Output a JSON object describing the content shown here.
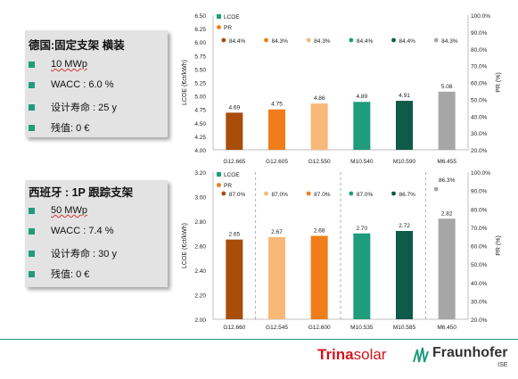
{
  "panels": [
    {
      "title": "德国:固定支架 横装",
      "bullets": [
        "10 MWp",
        "WACC : 6.0 %",
        "设计寿命 : 25 y",
        "残值: 0 €"
      ]
    },
    {
      "title": "西班牙 : 1P 跟踪支架",
      "bullets": [
        "50 MWp",
        "WACC : 7.4 %",
        "设计寿命 : 30 y",
        "残值: 0 €"
      ]
    }
  ],
  "chart_data": [
    {
      "type": "bar",
      "categories": [
        "G12.665",
        "G12.605",
        "G12.550",
        "M10.540",
        "M10.590",
        "M6.455"
      ],
      "series": [
        {
          "name": "LCOE",
          "values": [
            4.69,
            4.75,
            4.86,
            4.89,
            4.91,
            5.08
          ],
          "labels": [
            "4.69",
            "4.75",
            "4.86",
            "4.89",
            "4.91",
            "5.08"
          ]
        },
        {
          "name": "PR",
          "values": [
            84.4,
            84.3,
            84.3,
            84.4,
            84.4,
            84.3
          ],
          "labels": [
            "84.4%",
            "84.3%",
            "84.3%",
            "84.4%",
            "84.4%",
            "84.3%"
          ]
        }
      ],
      "bar_colors": [
        "#a84d0a",
        "#f07c1a",
        "#f8b878",
        "#1e9c7c",
        "#0f5a48",
        "#a6a6a6"
      ],
      "ylabel": "LCOE (€ct/kWh)",
      "y2label": "PR (%)",
      "ylim": [
        4.0,
        6.5
      ],
      "yticks": [
        "4.00",
        "4.50",
        "5.00",
        "5.50",
        "6.00",
        "6.50"
      ],
      "y2lim": [
        20,
        100
      ],
      "y2ticks": [
        "20.0%",
        "30.0%",
        "40.0%",
        "50.0%",
        "60.0%",
        "70.0%",
        "80.0%",
        "90.0%",
        "100.0%"
      ],
      "ytick_labels": [
        "4.00",
        "4.25",
        "4.50",
        "4.75",
        "5.00",
        "5.25",
        "5.50",
        "5.75",
        "6.00",
        "6.25",
        "6.50"
      ],
      "group_dividers": false,
      "legend": "top-left"
    },
    {
      "type": "bar",
      "categories": [
        "G12.660",
        "G12.545",
        "G12.600",
        "M10.535",
        "M10.585",
        "M6.450"
      ],
      "series": [
        {
          "name": "LCOE",
          "values": [
            2.65,
            2.67,
            2.68,
            2.7,
            2.72,
            2.82
          ],
          "labels": [
            "2.65",
            "2.67",
            "2.68",
            "2.70",
            "2.72",
            "2.82"
          ]
        },
        {
          "name": "PR",
          "values": [
            87.0,
            87.0,
            87.0,
            87.0,
            86.7,
            86.3
          ],
          "labels": [
            "87.0%",
            "87.0%",
            "87.0%",
            "87.0%",
            "86.7%",
            "86.3%"
          ]
        }
      ],
      "bar_colors": [
        "#a84d0a",
        "#f8b878",
        "#f07c1a",
        "#1e9c7c",
        "#0f5a48",
        "#a6a6a6"
      ],
      "ylabel": "LCOE (€ct/kWh)",
      "y2label": "PR (%)",
      "ylim": [
        2.0,
        3.2
      ],
      "ytick_labels": [
        "2.00",
        "2.20",
        "2.40",
        "2.60",
        "2.80",
        "3.00",
        "3.20"
      ],
      "y2lim": [
        20,
        100
      ],
      "y2ticks": [
        "20.0%",
        "30.0%",
        "40.0%",
        "50.0%",
        "60.0%",
        "70.0%",
        "80.0%",
        "90.0%",
        "100.0%"
      ],
      "group_dividers": true,
      "legend": "top-left"
    }
  ],
  "logos": {
    "trina_bold": "Trina",
    "trina_light": "solar",
    "fraunhofer": "Fraunhofer",
    "ise": "ISE"
  }
}
